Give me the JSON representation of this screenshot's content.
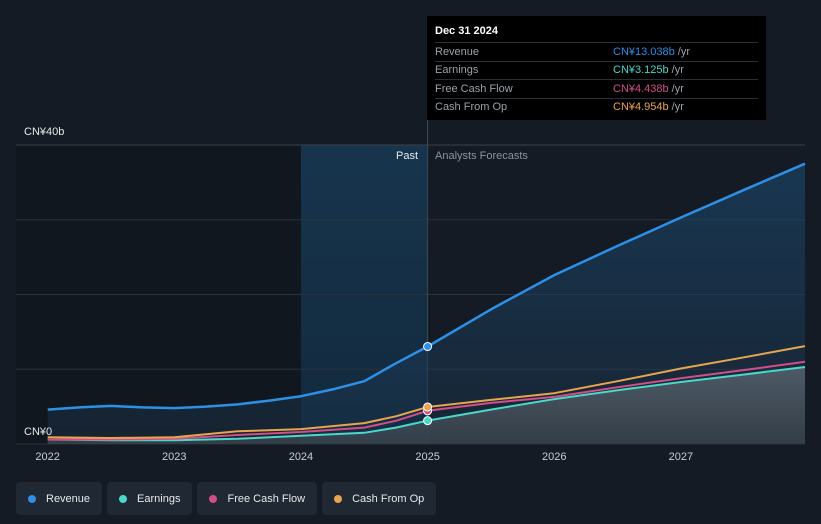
{
  "chart_data": {
    "type": "area",
    "y_axis_labels": {
      "top": "CN¥40b",
      "bottom": "CN¥0"
    },
    "ylim": [
      0,
      40
    ],
    "x_ticks": [
      2022,
      2023,
      2024,
      2025,
      2026,
      2027
    ],
    "xlim": [
      2021.75,
      2027.98
    ],
    "past_label": "Past",
    "forecast_label": "Analysts Forecasts",
    "divider_x": 2025.0,
    "past_region_start": 2024.0,
    "grid": true,
    "series": [
      {
        "name": "Revenue",
        "color": "#2d8fe6",
        "x": [
          2022.0,
          2022.25,
          2022.5,
          2022.75,
          2023.0,
          2023.25,
          2023.5,
          2023.75,
          2024.0,
          2024.25,
          2024.5,
          2024.75,
          2025.0,
          2025.5,
          2026.0,
          2026.5,
          2027.0,
          2027.5,
          2027.98
        ],
        "y": [
          4.6,
          4.9,
          5.1,
          4.9,
          4.8,
          5.0,
          5.3,
          5.8,
          6.4,
          7.3,
          8.4,
          10.8,
          13.038,
          18.0,
          22.6,
          26.5,
          30.3,
          34.0,
          37.5
        ]
      },
      {
        "name": "Earnings",
        "color": "#4ad8c8",
        "x": [
          2022.0,
          2022.5,
          2023.0,
          2023.5,
          2024.0,
          2024.5,
          2024.75,
          2025.0,
          2025.5,
          2026.0,
          2026.5,
          2027.0,
          2027.5,
          2027.98
        ],
        "y": [
          0.6,
          0.5,
          0.5,
          0.7,
          1.1,
          1.5,
          2.2,
          3.125,
          4.6,
          6.0,
          7.2,
          8.3,
          9.3,
          10.3
        ]
      },
      {
        "name": "Free Cash Flow",
        "color": "#d14f86",
        "x": [
          2022.0,
          2022.5,
          2023.0,
          2023.5,
          2024.0,
          2024.5,
          2024.75,
          2025.0,
          2025.5,
          2026.0,
          2026.5,
          2027.0,
          2027.5,
          2027.98
        ],
        "y": [
          0.6,
          0.6,
          0.7,
          1.2,
          1.6,
          2.2,
          3.1,
          4.438,
          5.5,
          6.3,
          7.6,
          8.8,
          9.9,
          11.0
        ]
      },
      {
        "name": "Cash From Op",
        "color": "#e8a54f",
        "x": [
          2022.0,
          2022.5,
          2023.0,
          2023.5,
          2024.0,
          2024.5,
          2024.75,
          2025.0,
          2025.5,
          2026.0,
          2026.5,
          2027.0,
          2027.5,
          2027.98
        ],
        "y": [
          0.9,
          0.8,
          0.9,
          1.7,
          2.0,
          2.8,
          3.7,
          4.954,
          5.9,
          6.8,
          8.4,
          10.1,
          11.6,
          13.1
        ]
      }
    ]
  },
  "tooltip": {
    "date": "Dec 31 2024",
    "rows": [
      {
        "name": "Revenue",
        "value": "CN¥13.038b",
        "unit": "/yr",
        "color": "#2d8fe6"
      },
      {
        "name": "Earnings",
        "value": "CN¥3.125b",
        "unit": "/yr",
        "color": "#4ad8c8"
      },
      {
        "name": "Free Cash Flow",
        "value": "CN¥4.438b",
        "unit": "/yr",
        "color": "#d14f86"
      },
      {
        "name": "Cash From Op",
        "value": "CN¥4.954b",
        "unit": "/yr",
        "color": "#e8a54f"
      }
    ]
  },
  "legend": [
    {
      "label": "Revenue",
      "color": "#2d8fe6"
    },
    {
      "label": "Earnings",
      "color": "#4ad8c8"
    },
    {
      "label": "Free Cash Flow",
      "color": "#d14f86"
    },
    {
      "label": "Cash From Op",
      "color": "#e8a54f"
    }
  ]
}
